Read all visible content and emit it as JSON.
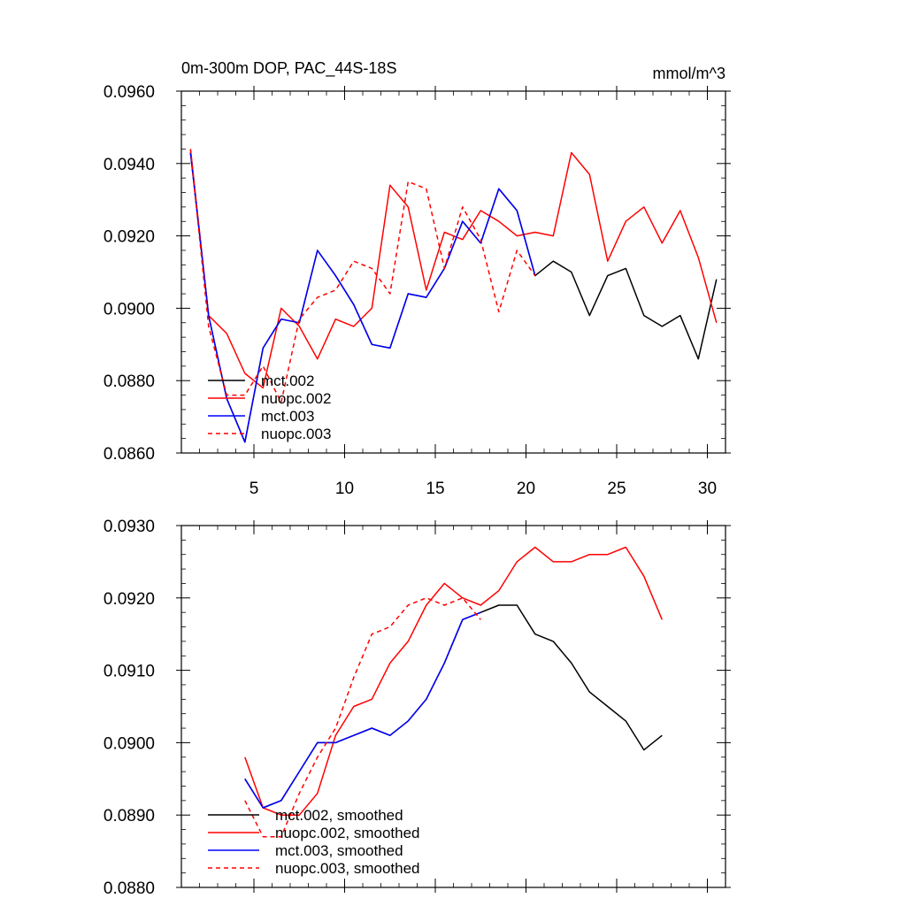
{
  "chart_data": [
    {
      "type": "line",
      "title": "0m-300m DOP, PAC_44S-18S",
      "units": "mmol/m^3",
      "xlabel": "",
      "ylabel": "",
      "xlim": [
        1,
        31
      ],
      "ylim": [
        0.086,
        0.096
      ],
      "xticks": [
        5,
        10,
        15,
        20,
        25,
        30
      ],
      "xtick_labels": [
        "5",
        "10",
        "15",
        "20",
        "25",
        "30"
      ],
      "yticks": [
        0.086,
        0.088,
        0.09,
        0.092,
        0.094,
        0.096
      ],
      "ytick_labels": [
        "0.0860",
        "0.0880",
        "0.0900",
        "0.0920",
        "0.0940",
        "0.0960"
      ],
      "grid": false,
      "legend": "bottom-left",
      "series": [
        {
          "name": "mct.002",
          "color": "#000000",
          "dash": "solid",
          "x": [
            1.5,
            2.5,
            3.5,
            4.5,
            5.5,
            6.5,
            7.5,
            8.5,
            9.5,
            10.5,
            11.5,
            12.5,
            13.5,
            14.5,
            15.5,
            16.5,
            17.5,
            18.5,
            19.5,
            20.5,
            21.5,
            22.5,
            23.5,
            24.5,
            25.5,
            26.5,
            27.5,
            28.5,
            29.5,
            30.5
          ],
          "values": [
            0.0943,
            0.0898,
            0.0875,
            0.0863,
            0.0889,
            0.0897,
            0.0896,
            0.0916,
            0.0909,
            0.0901,
            0.089,
            0.0889,
            0.0904,
            0.0903,
            0.0911,
            0.0924,
            0.0918,
            0.0933,
            0.0927,
            0.0909,
            0.0913,
            0.091,
            0.0898,
            0.0909,
            0.0911,
            0.0898,
            0.0895,
            0.0898,
            0.0886,
            0.0908
          ]
        },
        {
          "name": "nuopc.002",
          "color": "#ff0000",
          "dash": "solid",
          "x": [
            1.5,
            2.5,
            3.5,
            4.5,
            5.5,
            6.5,
            7.5,
            8.5,
            9.5,
            10.5,
            11.5,
            12.5,
            13.5,
            14.5,
            15.5,
            16.5,
            17.5,
            18.5,
            19.5,
            20.5,
            21.5,
            22.5,
            23.5,
            24.5,
            25.5,
            26.5,
            27.5,
            28.5,
            29.5,
            30.5
          ],
          "values": [
            0.0944,
            0.0898,
            0.0893,
            0.0882,
            0.0878,
            0.09,
            0.0895,
            0.0886,
            0.0897,
            0.0895,
            0.09,
            0.0934,
            0.0928,
            0.0905,
            0.0921,
            0.0919,
            0.0927,
            0.0924,
            0.092,
            0.0921,
            0.092,
            0.0943,
            0.0937,
            0.0913,
            0.0924,
            0.0928,
            0.0918,
            0.0927,
            0.0914,
            0.0896
          ]
        },
        {
          "name": "mct.003",
          "color": "#0000ff",
          "dash": "solid",
          "x": [
            1.5,
            2.5,
            3.5,
            4.5,
            5.5,
            6.5,
            7.5,
            8.5,
            9.5,
            10.5,
            11.5,
            12.5,
            13.5,
            14.5,
            15.5,
            16.5,
            17.5,
            18.5,
            19.5,
            20.5
          ],
          "values": [
            0.0943,
            0.0898,
            0.0875,
            0.0863,
            0.0889,
            0.0897,
            0.0896,
            0.0916,
            0.0909,
            0.0901,
            0.089,
            0.0889,
            0.0904,
            0.0903,
            0.0911,
            0.0924,
            0.0918,
            0.0933,
            0.0927,
            0.0909
          ]
        },
        {
          "name": "nuopc.003",
          "color": "#ff0000",
          "dash": "dashed",
          "x": [
            1.5,
            2.5,
            3.5,
            4.5,
            5.5,
            6.5,
            7.5,
            8.5,
            9.5,
            10.5,
            11.5,
            12.5,
            13.5,
            14.5,
            15.5,
            16.5,
            17.5,
            18.5,
            19.5,
            20.5
          ],
          "values": [
            0.0944,
            0.0895,
            0.0876,
            0.0876,
            0.0884,
            0.0874,
            0.0897,
            0.0903,
            0.0905,
            0.0913,
            0.0911,
            0.0904,
            0.0935,
            0.0933,
            0.0911,
            0.0928,
            0.0919,
            0.0899,
            0.0916,
            0.0909
          ]
        }
      ]
    },
    {
      "type": "line",
      "title": "",
      "xlabel": "",
      "ylabel": "",
      "xlim": [
        1,
        31
      ],
      "ylim": [
        0.088,
        0.093
      ],
      "xticks": [
        5,
        10,
        15,
        20,
        25,
        30
      ],
      "xtick_labels": [
        "",
        "",
        "",
        "",
        "",
        ""
      ],
      "yticks": [
        0.088,
        0.089,
        0.09,
        0.091,
        0.092,
        0.093
      ],
      "ytick_labels": [
        "0.0880",
        "0.0890",
        "0.0900",
        "0.0910",
        "0.0920",
        "0.0930"
      ],
      "grid": false,
      "legend": "bottom-left",
      "series": [
        {
          "name": "mct.002, smoothed",
          "color": "#000000",
          "dash": "solid",
          "x": [
            4.5,
            5.5,
            6.5,
            7.5,
            8.5,
            9.5,
            10.5,
            11.5,
            12.5,
            13.5,
            14.5,
            15.5,
            16.5,
            17.5,
            18.5,
            19.5,
            20.5,
            21.5,
            22.5,
            23.5,
            24.5,
            25.5,
            26.5,
            27.5
          ],
          "values": [
            0.0895,
            0.0891,
            0.0892,
            0.0896,
            0.09,
            0.09,
            0.0901,
            0.0902,
            0.0901,
            0.0903,
            0.0906,
            0.0911,
            0.0917,
            0.0918,
            0.0919,
            0.0919,
            0.0915,
            0.0914,
            0.0911,
            0.0907,
            0.0905,
            0.0903,
            0.0899,
            0.0901
          ]
        },
        {
          "name": "nuopc.002, smoothed",
          "color": "#ff0000",
          "dash": "solid",
          "x": [
            4.5,
            5.5,
            6.5,
            7.5,
            8.5,
            9.5,
            10.5,
            11.5,
            12.5,
            13.5,
            14.5,
            15.5,
            16.5,
            17.5,
            18.5,
            19.5,
            20.5,
            21.5,
            22.5,
            23.5,
            24.5,
            25.5,
            26.5,
            27.5
          ],
          "values": [
            0.0898,
            0.0891,
            0.089,
            0.089,
            0.0893,
            0.0901,
            0.0905,
            0.0906,
            0.0911,
            0.0914,
            0.0919,
            0.0922,
            0.092,
            0.0919,
            0.0921,
            0.0925,
            0.0927,
            0.0925,
            0.0925,
            0.0926,
            0.0926,
            0.0927,
            0.0923,
            0.0917
          ]
        },
        {
          "name": "mct.003, smoothed",
          "color": "#0000ff",
          "dash": "solid",
          "x": [
            4.5,
            5.5,
            6.5,
            7.5,
            8.5,
            9.5,
            10.5,
            11.5,
            12.5,
            13.5,
            14.5,
            15.5,
            16.5,
            17.5
          ],
          "values": [
            0.0895,
            0.0891,
            0.0892,
            0.0896,
            0.09,
            0.09,
            0.0901,
            0.0902,
            0.0901,
            0.0903,
            0.0906,
            0.0911,
            0.0917,
            0.0918
          ]
        },
        {
          "name": "nuopc.003, smoothed",
          "color": "#ff0000",
          "dash": "dashed",
          "x": [
            4.5,
            5.5,
            6.5,
            7.5,
            8.5,
            9.5,
            10.5,
            11.5,
            12.5,
            13.5,
            14.5,
            15.5,
            16.5,
            17.5
          ],
          "values": [
            0.0892,
            0.0887,
            0.0887,
            0.0893,
            0.0898,
            0.0902,
            0.0909,
            0.0915,
            0.0916,
            0.0919,
            0.092,
            0.0919,
            0.092,
            0.0917
          ]
        }
      ]
    }
  ]
}
